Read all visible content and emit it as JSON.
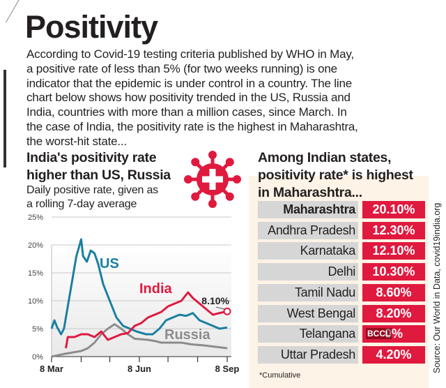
{
  "title": "Positivity",
  "intro_lines": [
    "According to Covid-19 testing criteria published by WHO in May,",
    "a positive rate of less than 5% (for two weeks running) is one",
    "indicator that the epidemic is under control in a country. The line",
    "chart below shows how positivity trended in the US, Russia and",
    "India, countries with more than a million cases, since March. In",
    "the case of India, the positivity rate is the highest in Maharashtra,",
    "the worst-hit state..."
  ],
  "left_heading": [
    "India's positivity rate",
    "higher than US, Russia"
  ],
  "left_subheading": [
    "Daily positive rate, given as",
    "a rolling 7-day average"
  ],
  "right_heading": [
    "Among Indian states,",
    "positivity rate* is highest",
    "in Maharashtra..."
  ],
  "icon": "virus-icon",
  "colors": {
    "us": "#1a7fa0",
    "india": "#e0193f",
    "russia": "#8c8c8c",
    "bar_red": "#e0193f",
    "label_gray": "#d6d6d6"
  },
  "chart_data": [
    {
      "type": "line",
      "title": "India's positivity rate higher than US, Russia",
      "subtitle": "Daily positive rate, given as a rolling 7-day average",
      "ylim": [
        0,
        25
      ],
      "yticks": [
        "0%",
        "5%",
        "10%",
        "15%",
        "20%",
        "25%"
      ],
      "ytick_values": [
        0,
        5,
        10,
        15,
        20,
        25
      ],
      "xlim": [
        "2020-03-08",
        "2020-09-08"
      ],
      "xtick_labels": [
        "8 Mar",
        "8 Jun",
        "8 Sep"
      ],
      "xtick_dates": [
        "2020-03-08",
        "2020-04-08",
        "2020-05-08",
        "2020-06-08",
        "2020-07-08",
        "2020-08-08",
        "2020-09-08"
      ],
      "grid": true,
      "annotation": {
        "text": "8.10%",
        "date": "2020-09-08",
        "value": 8.1
      },
      "series": [
        {
          "name": "US",
          "color": "#1a7fa0",
          "points": [
            [
              "2020-03-08",
              5
            ],
            [
              "2020-03-11",
              6.5
            ],
            [
              "2020-03-14",
              5.2
            ],
            [
              "2020-03-18",
              4
            ],
            [
              "2020-03-21",
              5
            ],
            [
              "2020-03-28",
              12
            ],
            [
              "2020-04-03",
              18
            ],
            [
              "2020-04-08",
              21
            ],
            [
              "2020-04-10",
              18
            ],
            [
              "2020-04-14",
              17
            ],
            [
              "2020-04-18",
              19
            ],
            [
              "2020-04-22",
              18.5
            ],
            [
              "2020-04-26",
              16.5
            ],
            [
              "2020-05-01",
              13
            ],
            [
              "2020-05-08",
              10
            ],
            [
              "2020-05-15",
              7
            ],
            [
              "2020-05-22",
              5.5
            ],
            [
              "2020-05-29",
              5
            ],
            [
              "2020-06-05",
              4.5
            ],
            [
              "2020-06-15",
              4
            ],
            [
              "2020-06-22",
              4
            ],
            [
              "2020-06-29",
              5
            ],
            [
              "2020-07-06",
              6.5
            ],
            [
              "2020-07-13",
              7
            ],
            [
              "2020-07-20",
              7.5
            ],
            [
              "2020-07-27",
              7.3
            ],
            [
              "2020-08-03",
              7.8
            ],
            [
              "2020-08-10",
              6.5
            ],
            [
              "2020-08-17",
              6
            ],
            [
              "2020-08-24",
              5.5
            ],
            [
              "2020-08-31",
              5
            ],
            [
              "2020-09-08",
              5.2
            ]
          ]
        },
        {
          "name": "India",
          "color": "#e0193f",
          "points": [
            [
              "2020-03-23",
              1.5
            ],
            [
              "2020-03-25",
              3.5
            ],
            [
              "2020-04-01",
              3.5
            ],
            [
              "2020-04-08",
              4
            ],
            [
              "2020-04-15",
              4
            ],
            [
              "2020-04-22",
              3.5
            ],
            [
              "2020-04-29",
              4.5
            ],
            [
              "2020-05-06",
              3
            ],
            [
              "2020-05-13",
              3.5
            ],
            [
              "2020-05-20",
              4
            ],
            [
              "2020-05-27",
              4.2
            ],
            [
              "2020-06-03",
              5.5
            ],
            [
              "2020-06-10",
              6
            ],
            [
              "2020-06-17",
              7
            ],
            [
              "2020-06-24",
              7.5
            ],
            [
              "2020-07-01",
              8
            ],
            [
              "2020-07-08",
              9
            ],
            [
              "2020-07-15",
              9.5
            ],
            [
              "2020-07-22",
              10
            ],
            [
              "2020-07-29",
              11.5
            ],
            [
              "2020-08-03",
              10.5
            ],
            [
              "2020-08-10",
              9.5
            ],
            [
              "2020-08-17",
              8.5
            ],
            [
              "2020-08-24",
              7.5
            ],
            [
              "2020-08-31",
              7.8
            ],
            [
              "2020-09-08",
              8.1
            ]
          ]
        },
        {
          "name": "Russia",
          "color": "#8c8c8c",
          "points": [
            [
              "2020-03-08",
              0
            ],
            [
              "2020-03-22",
              0.5
            ],
            [
              "2020-04-01",
              0.8
            ],
            [
              "2020-04-08",
              1
            ],
            [
              "2020-04-15",
              1.5
            ],
            [
              "2020-04-22",
              2.5
            ],
            [
              "2020-04-29",
              4
            ],
            [
              "2020-05-06",
              5
            ],
            [
              "2020-05-13",
              5.8
            ],
            [
              "2020-05-20",
              5
            ],
            [
              "2020-05-27",
              4
            ],
            [
              "2020-06-03",
              3.2
            ],
            [
              "2020-06-17",
              3
            ],
            [
              "2020-06-24",
              2.8
            ],
            [
              "2020-07-01",
              2.5
            ],
            [
              "2020-07-22",
              2.5
            ],
            [
              "2020-08-01",
              2.2
            ],
            [
              "2020-08-15",
              2
            ],
            [
              "2020-09-08",
              1.5
            ]
          ]
        }
      ]
    },
    {
      "type": "table",
      "title": "Among Indian states, positivity rate* is highest in Maharashtra...",
      "rows": [
        {
          "state": "Maharashtra",
          "value": "20.10%"
        },
        {
          "state": "Andhra Pradesh",
          "value": "12.30%"
        },
        {
          "state": "Karnataka",
          "value": "12.10%"
        },
        {
          "state": "Delhi",
          "value": "10.30%"
        },
        {
          "state": "Tamil Nadu",
          "value": "8.60%"
        },
        {
          "state": "West Bengal",
          "value": "8.20%"
        },
        {
          "state": "Telangana",
          "value": "0%"
        },
        {
          "state": "Uttar Pradesh",
          "value": "4.20%"
        }
      ]
    }
  ],
  "watermark": "BCCL",
  "footnote": "*Cumulative",
  "source": "Source: Our World in Data, covid19india.org"
}
